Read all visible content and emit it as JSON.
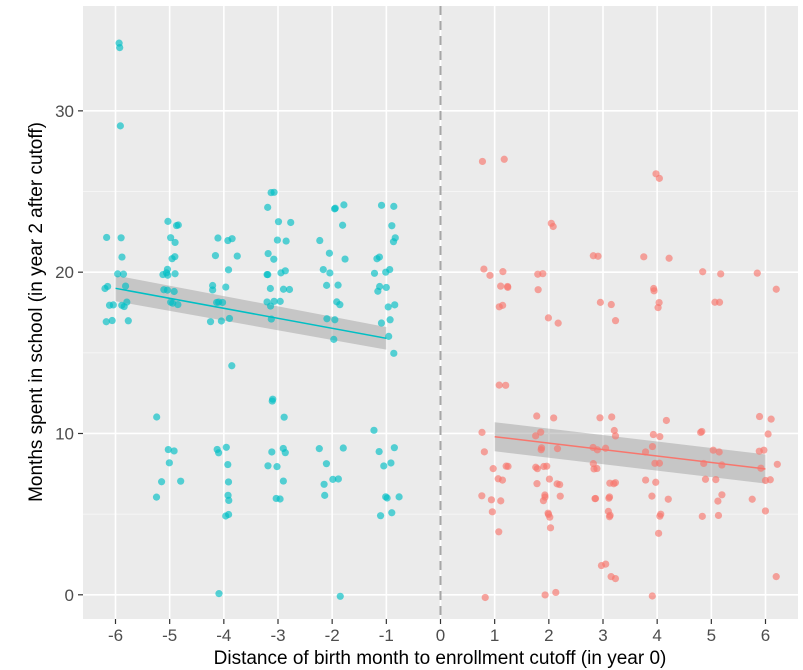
{
  "colors": {
    "panel_background": "#ebebeb",
    "grid_major": "#ffffff",
    "grid_minor": "#f5f5f5",
    "left_group": "#00bfc4",
    "right_group": "#f8766d",
    "confidence_band": "#999999",
    "cutoff_line": "#a6a6a6"
  },
  "chart_data": {
    "type": "scatter",
    "xlabel": "Distance of birth month to enrollment cutoff (in year 0)",
    "ylabel": "Months spent in school (in year 2 after cutoff)",
    "x_ticks": [
      "-6",
      "-5",
      "-4",
      "-3",
      "-2",
      "-1",
      "0",
      "1",
      "2",
      "3",
      "4",
      "5",
      "6"
    ],
    "y_ticks": [
      "0",
      "10",
      "20",
      "30"
    ],
    "xlim": [
      -6.6,
      6.6
    ],
    "ylim": [
      -1.5,
      36.5
    ],
    "grid": true,
    "cutoff": {
      "x": 0,
      "style": "dashed"
    },
    "series": [
      {
        "group": "left",
        "color": "#00bfc4",
        "points": [
          [
            -6,
            34
          ],
          [
            -6,
            34
          ],
          [
            -6,
            29
          ],
          [
            -6,
            22
          ],
          [
            -6,
            22
          ],
          [
            -6,
            21
          ],
          [
            -6,
            20
          ],
          [
            -6,
            20
          ],
          [
            -6,
            19
          ],
          [
            -6,
            19
          ],
          [
            -6,
            19
          ],
          [
            -6,
            18
          ],
          [
            -6,
            18
          ],
          [
            -6,
            18
          ],
          [
            -6,
            18
          ],
          [
            -6,
            18
          ],
          [
            -6,
            17
          ],
          [
            -6,
            17
          ],
          [
            -6,
            17
          ],
          [
            -5,
            23
          ],
          [
            -5,
            23
          ],
          [
            -5,
            23
          ],
          [
            -5,
            22
          ],
          [
            -5,
            22
          ],
          [
            -5,
            21
          ],
          [
            -5,
            21
          ],
          [
            -5,
            20
          ],
          [
            -5,
            20
          ],
          [
            -5,
            20
          ],
          [
            -5,
            20
          ],
          [
            -5,
            20
          ],
          [
            -5,
            19
          ],
          [
            -5,
            19
          ],
          [
            -5,
            19
          ],
          [
            -5,
            18
          ],
          [
            -5,
            18
          ],
          [
            -5,
            18
          ],
          [
            -5,
            11
          ],
          [
            -5,
            9
          ],
          [
            -5,
            9
          ],
          [
            -5,
            8
          ],
          [
            -5,
            7
          ],
          [
            -5,
            7
          ],
          [
            -5,
            6
          ],
          [
            -4,
            22
          ],
          [
            -4,
            22
          ],
          [
            -4,
            22
          ],
          [
            -4,
            21
          ],
          [
            -4,
            21
          ],
          [
            -4,
            20
          ],
          [
            -4,
            19
          ],
          [
            -4,
            19
          ],
          [
            -4,
            19
          ],
          [
            -4,
            18
          ],
          [
            -4,
            18
          ],
          [
            -4,
            18
          ],
          [
            -4,
            17
          ],
          [
            -4,
            17
          ],
          [
            -4,
            17
          ],
          [
            -4,
            14
          ],
          [
            -4,
            9
          ],
          [
            -4,
            9
          ],
          [
            -4,
            9
          ],
          [
            -4,
            8
          ],
          [
            -4,
            7
          ],
          [
            -4,
            6
          ],
          [
            -4,
            6
          ],
          [
            -4,
            5
          ],
          [
            -4,
            5
          ],
          [
            -4,
            0
          ],
          [
            -3,
            25
          ],
          [
            -3,
            25
          ],
          [
            -3,
            24
          ],
          [
            -3,
            23
          ],
          [
            -3,
            23
          ],
          [
            -3,
            22
          ],
          [
            -3,
            22
          ],
          [
            -3,
            21
          ],
          [
            -3,
            21
          ],
          [
            -3,
            20
          ],
          [
            -3,
            20
          ],
          [
            -3,
            20
          ],
          [
            -3,
            20
          ],
          [
            -3,
            19
          ],
          [
            -3,
            19
          ],
          [
            -3,
            19
          ],
          [
            -3,
            18
          ],
          [
            -3,
            18
          ],
          [
            -3,
            18
          ],
          [
            -3,
            18
          ],
          [
            -3,
            17
          ],
          [
            -3,
            12
          ],
          [
            -3,
            12
          ],
          [
            -3,
            11
          ],
          [
            -3,
            9
          ],
          [
            -3,
            9
          ],
          [
            -3,
            9
          ],
          [
            -3,
            8
          ],
          [
            -3,
            8
          ],
          [
            -3,
            7
          ],
          [
            -3,
            6
          ],
          [
            -3,
            6
          ],
          [
            -2,
            24
          ],
          [
            -2,
            24
          ],
          [
            -2,
            24
          ],
          [
            -2,
            23
          ],
          [
            -2,
            22
          ],
          [
            -2,
            21
          ],
          [
            -2,
            21
          ],
          [
            -2,
            20
          ],
          [
            -2,
            20
          ],
          [
            -2,
            19
          ],
          [
            -2,
            19
          ],
          [
            -2,
            18
          ],
          [
            -2,
            18
          ],
          [
            -2,
            17
          ],
          [
            -2,
            17
          ],
          [
            -2,
            16
          ],
          [
            -2,
            9
          ],
          [
            -2,
            9
          ],
          [
            -2,
            8
          ],
          [
            -2,
            7
          ],
          [
            -2,
            7
          ],
          [
            -2,
            7
          ],
          [
            -2,
            6
          ],
          [
            -2,
            0
          ],
          [
            -1,
            24
          ],
          [
            -1,
            24
          ],
          [
            -1,
            23
          ],
          [
            -1,
            22
          ],
          [
            -1,
            22
          ],
          [
            -1,
            21
          ],
          [
            -1,
            21
          ],
          [
            -1,
            20
          ],
          [
            -1,
            20
          ],
          [
            -1,
            20
          ],
          [
            -1,
            19
          ],
          [
            -1,
            19
          ],
          [
            -1,
            19
          ],
          [
            -1,
            18
          ],
          [
            -1,
            18
          ],
          [
            -1,
            17
          ],
          [
            -1,
            17
          ],
          [
            -1,
            16
          ],
          [
            -1,
            15
          ],
          [
            -1,
            10
          ],
          [
            -1,
            9
          ],
          [
            -1,
            9
          ],
          [
            -1,
            8
          ],
          [
            -1,
            8
          ],
          [
            -1,
            6
          ],
          [
            -1,
            6
          ],
          [
            -1,
            6
          ],
          [
            -1,
            5
          ],
          [
            -1,
            5
          ]
        ],
        "fit": {
          "x": [
            -6,
            -1
          ],
          "y": [
            19.0,
            15.9
          ],
          "ci_halfwidth": [
            0.8,
            0.7
          ]
        }
      },
      {
        "group": "right",
        "color": "#f8766d",
        "points": [
          [
            1,
            27
          ],
          [
            1,
            27
          ],
          [
            1,
            20
          ],
          [
            1,
            20
          ],
          [
            1,
            20
          ],
          [
            1,
            19
          ],
          [
            1,
            19
          ],
          [
            1,
            19
          ],
          [
            1,
            18
          ],
          [
            1,
            18
          ],
          [
            1,
            13
          ],
          [
            1,
            13
          ],
          [
            1,
            10
          ],
          [
            1,
            9
          ],
          [
            1,
            8
          ],
          [
            1,
            8
          ],
          [
            1,
            8
          ],
          [
            1,
            7
          ],
          [
            1,
            7
          ],
          [
            1,
            6
          ],
          [
            1,
            6
          ],
          [
            1,
            6
          ],
          [
            1,
            5
          ],
          [
            1,
            4
          ],
          [
            1,
            0
          ],
          [
            2,
            23
          ],
          [
            2,
            23
          ],
          [
            2,
            20
          ],
          [
            2,
            20
          ],
          [
            2,
            19
          ],
          [
            2,
            17
          ],
          [
            2,
            17
          ],
          [
            2,
            11
          ],
          [
            2,
            11
          ],
          [
            2,
            10
          ],
          [
            2,
            10
          ],
          [
            2,
            9
          ],
          [
            2,
            9
          ],
          [
            2,
            9
          ],
          [
            2,
            8
          ],
          [
            2,
            8
          ],
          [
            2,
            8
          ],
          [
            2,
            8
          ],
          [
            2,
            7
          ],
          [
            2,
            7
          ],
          [
            2,
            7
          ],
          [
            2,
            7
          ],
          [
            2,
            6
          ],
          [
            2,
            6
          ],
          [
            2,
            6
          ],
          [
            2,
            6
          ],
          [
            2,
            5
          ],
          [
            2,
            5
          ],
          [
            2,
            5
          ],
          [
            2,
            4
          ],
          [
            2,
            0
          ],
          [
            2,
            0
          ],
          [
            3,
            21
          ],
          [
            3,
            21
          ],
          [
            3,
            18
          ],
          [
            3,
            18
          ],
          [
            3,
            17
          ],
          [
            3,
            11
          ],
          [
            3,
            11
          ],
          [
            3,
            10
          ],
          [
            3,
            10
          ],
          [
            3,
            9
          ],
          [
            3,
            9
          ],
          [
            3,
            9
          ],
          [
            3,
            8
          ],
          [
            3,
            8
          ],
          [
            3,
            8
          ],
          [
            3,
            7
          ],
          [
            3,
            7
          ],
          [
            3,
            7
          ],
          [
            3,
            6
          ],
          [
            3,
            6
          ],
          [
            3,
            6
          ],
          [
            3,
            6
          ],
          [
            3,
            5
          ],
          [
            3,
            5
          ],
          [
            3,
            5
          ],
          [
            3,
            2
          ],
          [
            3,
            2
          ],
          [
            3,
            1
          ],
          [
            3,
            1
          ],
          [
            4,
            26
          ],
          [
            4,
            26
          ],
          [
            4,
            21
          ],
          [
            4,
            21
          ],
          [
            4,
            19
          ],
          [
            4,
            19
          ],
          [
            4,
            18
          ],
          [
            4,
            18
          ],
          [
            4,
            11
          ],
          [
            4,
            10
          ],
          [
            4,
            10
          ],
          [
            4,
            9
          ],
          [
            4,
            9
          ],
          [
            4,
            8
          ],
          [
            4,
            8
          ],
          [
            4,
            7
          ],
          [
            4,
            7
          ],
          [
            4,
            6
          ],
          [
            4,
            6
          ],
          [
            4,
            5
          ],
          [
            4,
            5
          ],
          [
            4,
            4
          ],
          [
            4,
            0
          ],
          [
            5,
            20
          ],
          [
            5,
            20
          ],
          [
            5,
            18
          ],
          [
            5,
            18
          ],
          [
            5,
            10
          ],
          [
            5,
            10
          ],
          [
            5,
            9
          ],
          [
            5,
            9
          ],
          [
            5,
            8
          ],
          [
            5,
            8
          ],
          [
            5,
            7
          ],
          [
            5,
            7
          ],
          [
            5,
            6
          ],
          [
            5,
            6
          ],
          [
            5,
            5
          ],
          [
            5,
            5
          ],
          [
            6,
            20
          ],
          [
            6,
            19
          ],
          [
            6,
            11
          ],
          [
            6,
            11
          ],
          [
            6,
            10
          ],
          [
            6,
            9
          ],
          [
            6,
            9
          ],
          [
            6,
            8
          ],
          [
            6,
            8
          ],
          [
            6,
            7
          ],
          [
            6,
            7
          ],
          [
            6,
            6
          ],
          [
            6,
            5
          ],
          [
            6,
            1
          ]
        ],
        "fit": {
          "x": [
            1,
            6
          ],
          "y": [
            9.8,
            7.8
          ],
          "ci_halfwidth": [
            0.9,
            0.9
          ]
        }
      }
    ]
  }
}
